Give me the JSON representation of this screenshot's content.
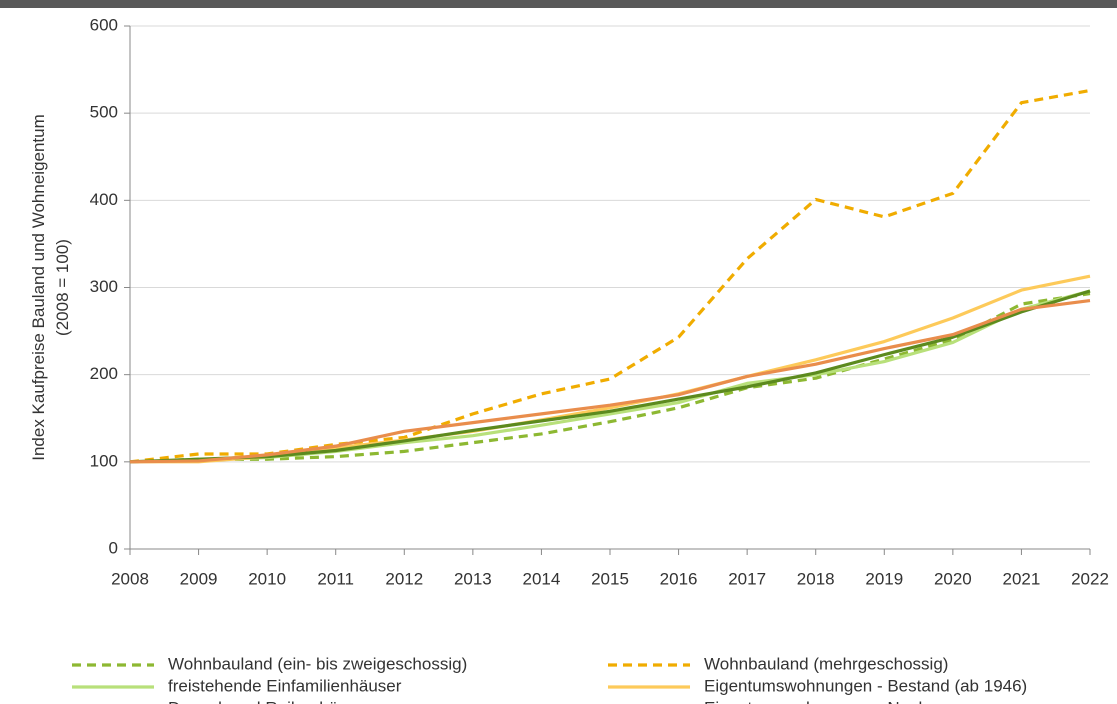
{
  "chart_data": {
    "type": "line",
    "y_label": [
      "Index Kaufpreise Bauland und Wohneigentum",
      "(2008 = 100)"
    ],
    "x": [
      2008,
      2009,
      2010,
      2011,
      2012,
      2013,
      2014,
      2015,
      2016,
      2017,
      2018,
      2019,
      2020,
      2021,
      2022
    ],
    "xlim": [
      2008,
      2022
    ],
    "xticks": [
      2008,
      2009,
      2010,
      2011,
      2012,
      2013,
      2014,
      2015,
      2016,
      2017,
      2018,
      2019,
      2020,
      2021,
      2022
    ],
    "ylim": [
      0,
      600
    ],
    "yticks": [
      0,
      100,
      200,
      300,
      400,
      500,
      600
    ],
    "grid": true,
    "legend": "bottom",
    "series": [
      {
        "name": "Wohnbauland (ein- bis zweigeschossig)",
        "color": "#8db832",
        "dashed": true,
        "values": [
          100,
          103,
          103,
          106,
          112,
          122,
          132,
          146,
          162,
          185,
          196,
          218,
          240,
          281,
          293
        ]
      },
      {
        "name": "Wohnbauland (mehrgeschossig)",
        "color": "#f0ac00",
        "dashed": true,
        "values": [
          100,
          109,
          109,
          120,
          128,
          155,
          178,
          195,
          243,
          333,
          401,
          381,
          408,
          512,
          526
        ]
      },
      {
        "name": "freistehende Einfamilienhäuser",
        "color": "#b8e07a",
        "dashed": false,
        "values": [
          100,
          102,
          105,
          112,
          122,
          130,
          142,
          155,
          168,
          190,
          200,
          215,
          237,
          275,
          296
        ]
      },
      {
        "name": "Eigentumswohnungen - Bestand (ab 1946)",
        "color": "#fdca5a",
        "dashed": false,
        "values": [
          100,
          100,
          106,
          116,
          125,
          135,
          148,
          162,
          178,
          198,
          217,
          238,
          265,
          297,
          313
        ]
      },
      {
        "name": "Doppel- und Reihenhäuser",
        "color": "#5c8a1e",
        "dashed": false,
        "values": [
          100,
          103,
          106,
          113,
          124,
          136,
          147,
          158,
          172,
          186,
          202,
          223,
          243,
          272,
          296
        ]
      },
      {
        "name": "Eigentumswohnungen - Neubau",
        "color": "#e98d4c",
        "dashed": false,
        "values": [
          100,
          101,
          108,
          118,
          135,
          145,
          155,
          165,
          177,
          198,
          212,
          230,
          246,
          275,
          285
        ]
      }
    ]
  }
}
